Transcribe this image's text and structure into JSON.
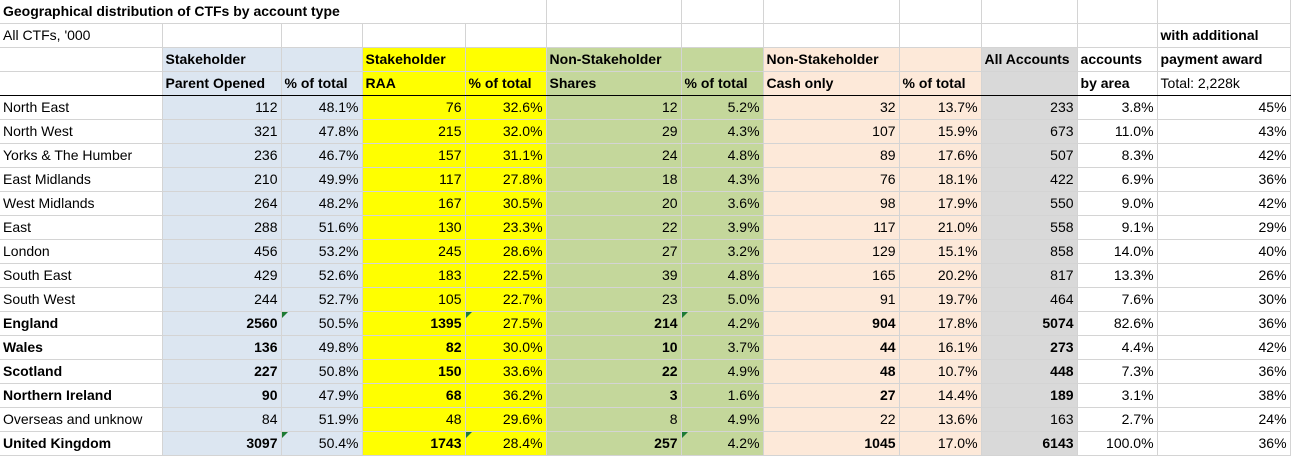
{
  "title": "Geographical distribution of CTFs by account type",
  "subtitle": "All CTFs, '000",
  "header_row1": {
    "stakeholder_parent": "Stakeholder",
    "stakeholder_raa": "Stakeholder",
    "nonstake_shares": "Non-Stakeholder",
    "nonstake_cash": "Non-Stakeholder",
    "all_accounts": "All Accounts",
    "accounts": "accounts",
    "payment_award": "payment award"
  },
  "header_row0": {
    "additional": "with additional"
  },
  "header_row2": {
    "parent_opened": "Parent Opened",
    "pct1": "% of total",
    "raa": "RAA",
    "pct2": "% of total",
    "shares": "Shares",
    "pct3": "% of total",
    "cash_only": "Cash only",
    "pct4": "% of total",
    "by_area": "by area",
    "total_award": "Total: 2,228k"
  },
  "rows": [
    {
      "region": "North East",
      "po": "112",
      "po_pct": "48.1%",
      "raa": "76",
      "raa_pct": "32.6%",
      "sh": "12",
      "sh_pct": "5.2%",
      "cash": "32",
      "cash_pct": "13.7%",
      "all": "233",
      "area": "3.8%",
      "award": "45%"
    },
    {
      "region": "North West",
      "po": "321",
      "po_pct": "47.8%",
      "raa": "215",
      "raa_pct": "32.0%",
      "sh": "29",
      "sh_pct": "4.3%",
      "cash": "107",
      "cash_pct": "15.9%",
      "all": "673",
      "area": "11.0%",
      "award": "43%"
    },
    {
      "region": "Yorks & The Humber",
      "po": "236",
      "po_pct": "46.7%",
      "raa": "157",
      "raa_pct": "31.1%",
      "sh": "24",
      "sh_pct": "4.8%",
      "cash": "89",
      "cash_pct": "17.6%",
      "all": "507",
      "area": "8.3%",
      "award": "42%"
    },
    {
      "region": "East Midlands",
      "po": "210",
      "po_pct": "49.9%",
      "raa": "117",
      "raa_pct": "27.8%",
      "sh": "18",
      "sh_pct": "4.3%",
      "cash": "76",
      "cash_pct": "18.1%",
      "all": "422",
      "area": "6.9%",
      "award": "36%"
    },
    {
      "region": "West Midlands",
      "po": "264",
      "po_pct": "48.2%",
      "raa": "167",
      "raa_pct": "30.5%",
      "sh": "20",
      "sh_pct": "3.6%",
      "cash": "98",
      "cash_pct": "17.9%",
      "all": "550",
      "area": "9.0%",
      "award": "42%"
    },
    {
      "region": "East",
      "po": "288",
      "po_pct": "51.6%",
      "raa": "130",
      "raa_pct": "23.3%",
      "sh": "22",
      "sh_pct": "3.9%",
      "cash": "117",
      "cash_pct": "21.0%",
      "all": "558",
      "area": "9.1%",
      "award": "29%"
    },
    {
      "region": "London",
      "po": "456",
      "po_pct": "53.2%",
      "raa": "245",
      "raa_pct": "28.6%",
      "sh": "27",
      "sh_pct": "3.2%",
      "cash": "129",
      "cash_pct": "15.1%",
      "all": "858",
      "area": "14.0%",
      "award": "40%"
    },
    {
      "region": "South East",
      "po": "429",
      "po_pct": "52.6%",
      "raa": "183",
      "raa_pct": "22.5%",
      "sh": "39",
      "sh_pct": "4.8%",
      "cash": "165",
      "cash_pct": "20.2%",
      "all": "817",
      "area": "13.3%",
      "award": "26%"
    },
    {
      "region": "South West",
      "po": "244",
      "po_pct": "52.7%",
      "raa": "105",
      "raa_pct": "22.7%",
      "sh": "23",
      "sh_pct": "5.0%",
      "cash": "91",
      "cash_pct": "19.7%",
      "all": "464",
      "area": "7.6%",
      "award": "30%"
    },
    {
      "region": "England",
      "po": "2560",
      "po_pct": "50.5%",
      "raa": "1395",
      "raa_pct": "27.5%",
      "sh": "214",
      "sh_pct": "4.2%",
      "cash": "904",
      "cash_pct": "17.8%",
      "all": "5074",
      "area": "82.6%",
      "award": "36%"
    },
    {
      "region": "Wales",
      "po": "136",
      "po_pct": "49.8%",
      "raa": "82",
      "raa_pct": "30.0%",
      "sh": "10",
      "sh_pct": "3.7%",
      "cash": "44",
      "cash_pct": "16.1%",
      "all": "273",
      "area": "4.4%",
      "award": "42%"
    },
    {
      "region": "Scotland",
      "po": "227",
      "po_pct": "50.8%",
      "raa": "150",
      "raa_pct": "33.6%",
      "sh": "22",
      "sh_pct": "4.9%",
      "cash": "48",
      "cash_pct": "10.7%",
      "all": "448",
      "area": "7.3%",
      "award": "36%"
    },
    {
      "region": "Northern Ireland",
      "po": "90",
      "po_pct": "47.9%",
      "raa": "68",
      "raa_pct": "36.2%",
      "sh": "3",
      "sh_pct": "1.6%",
      "cash": "27",
      "cash_pct": "14.4%",
      "all": "189",
      "area": "3.1%",
      "award": "38%"
    },
    {
      "region": "Overseas and unknow",
      "po": "84",
      "po_pct": "51.9%",
      "raa": "48",
      "raa_pct": "29.6%",
      "sh": "8",
      "sh_pct": "4.9%",
      "cash": "22",
      "cash_pct": "13.6%",
      "all": "163",
      "area": "2.7%",
      "award": "24%"
    },
    {
      "region": "United Kingdom",
      "po": "3097",
      "po_pct": "50.4%",
      "raa": "1743",
      "raa_pct": "28.4%",
      "sh": "257",
      "sh_pct": "4.2%",
      "cash": "1045",
      "cash_pct": "17.0%",
      "all": "6143",
      "area": "100.0%",
      "award": "36%"
    }
  ],
  "colors": {
    "stakeholder_parent": "#dce6f1",
    "stakeholder_raa": "#ffff00",
    "nonstake_shares": "#c4d79b",
    "nonstake_cash": "#fde9d9",
    "all_accounts": "#d9d9d9",
    "error_indicator": "#1e7b34"
  }
}
